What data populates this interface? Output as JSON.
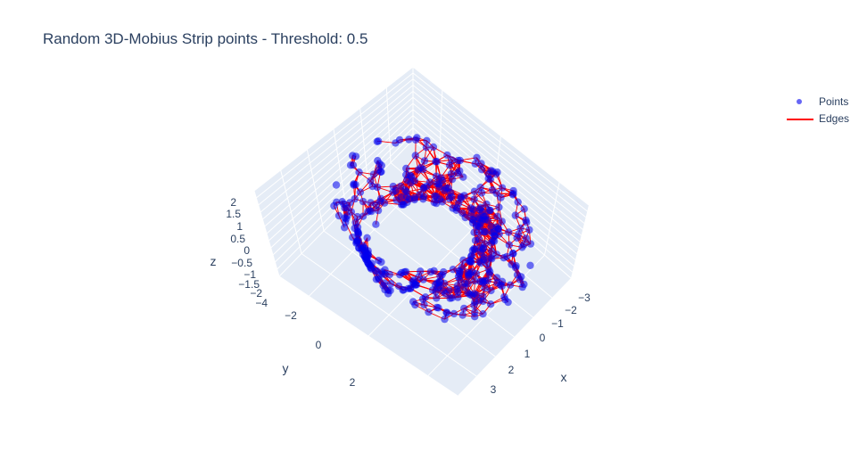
{
  "title": "Random 3D-Mobius Strip points - Threshold: 0.5",
  "legend": {
    "points": "Points",
    "edges": "Edges"
  },
  "colors": {
    "points": "#0000ee",
    "edges": "#ff0000",
    "scene_bg": "#e5ecf6",
    "text": "#2a3f5f"
  },
  "chart_data": {
    "type": "scatter",
    "subtype": "3d-scatter-with-edges",
    "title": "Random 3D-Mobius Strip points - Threshold: 0.5",
    "axes": {
      "x": {
        "title": "x",
        "ticks": [
          "3",
          "2",
          "1",
          "0",
          "−1",
          "−2",
          "−3"
        ],
        "range": [
          -3,
          3
        ]
      },
      "y": {
        "title": "y",
        "ticks": [
          "−2",
          "0",
          "2"
        ],
        "range": [
          -3,
          3
        ]
      },
      "z": {
        "title": "z",
        "ticks": [
          "2",
          "1.5",
          "1",
          "0.5",
          "0",
          "−0.5",
          "−1",
          "−1.5",
          "−2",
          "−4"
        ],
        "range": [
          -4,
          2
        ]
      }
    },
    "grid": true,
    "legend_position": "top-right",
    "series": [
      {
        "name": "Points",
        "mode": "markers",
        "color": "#0000ee"
      },
      {
        "name": "Edges",
        "mode": "lines",
        "color": "#ff0000"
      }
    ],
    "surface": {
      "shape": "mobius",
      "R": 2.5,
      "half_width": 1.0,
      "n_points": 420,
      "edge_threshold": 0.5
    }
  }
}
